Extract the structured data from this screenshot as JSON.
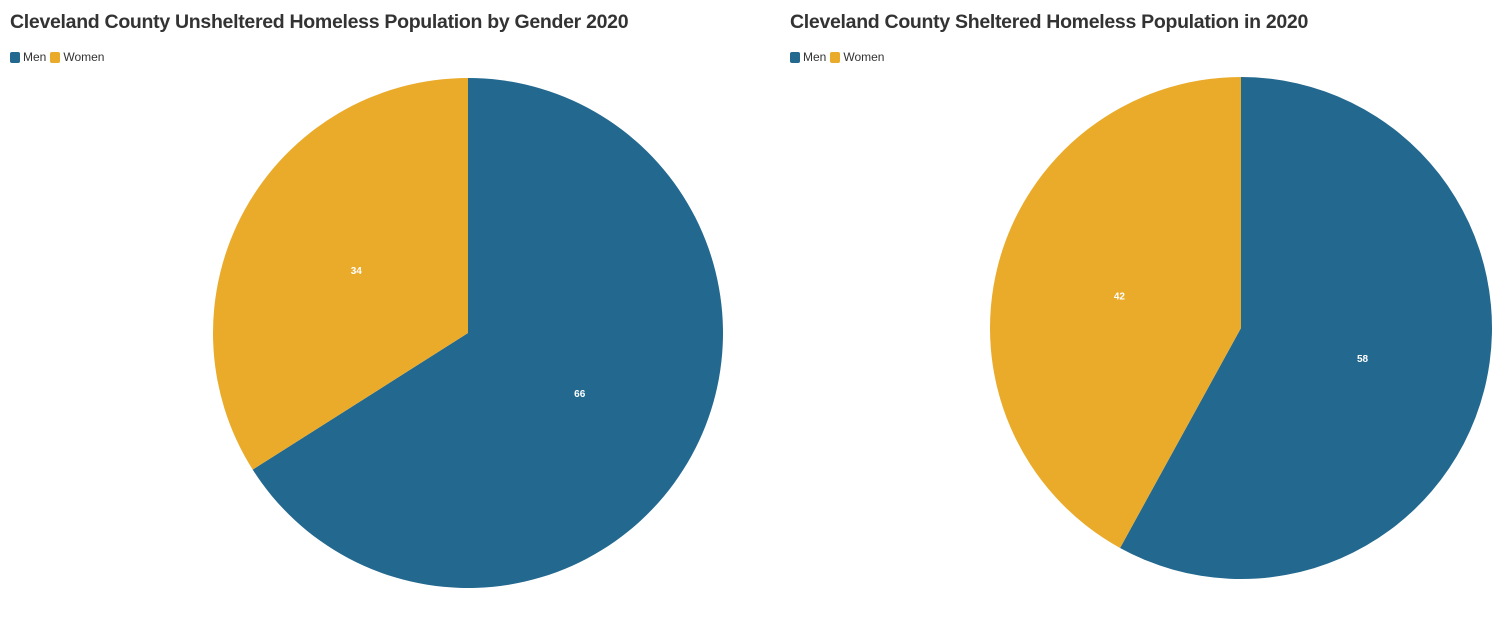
{
  "chart_data": [
    {
      "type": "pie",
      "title": "Cleveland County Unsheltered Homeless Population by Gender 2020",
      "legend": [
        "Men",
        "Women"
      ],
      "legend_placement": "top-left",
      "series": [
        {
          "name": "Men",
          "value": 66,
          "color": "#22688f"
        },
        {
          "name": "Women",
          "value": 34,
          "color": "#eaab2b"
        }
      ]
    },
    {
      "type": "pie",
      "title": "Cleveland County Sheltered Homeless Population in 2020",
      "legend": [
        "Men",
        "Women"
      ],
      "legend_placement": "top-left",
      "series": [
        {
          "name": "Men",
          "value": 58,
          "color": "#22688f"
        },
        {
          "name": "Women",
          "value": 42,
          "color": "#eaab2b"
        }
      ]
    }
  ]
}
